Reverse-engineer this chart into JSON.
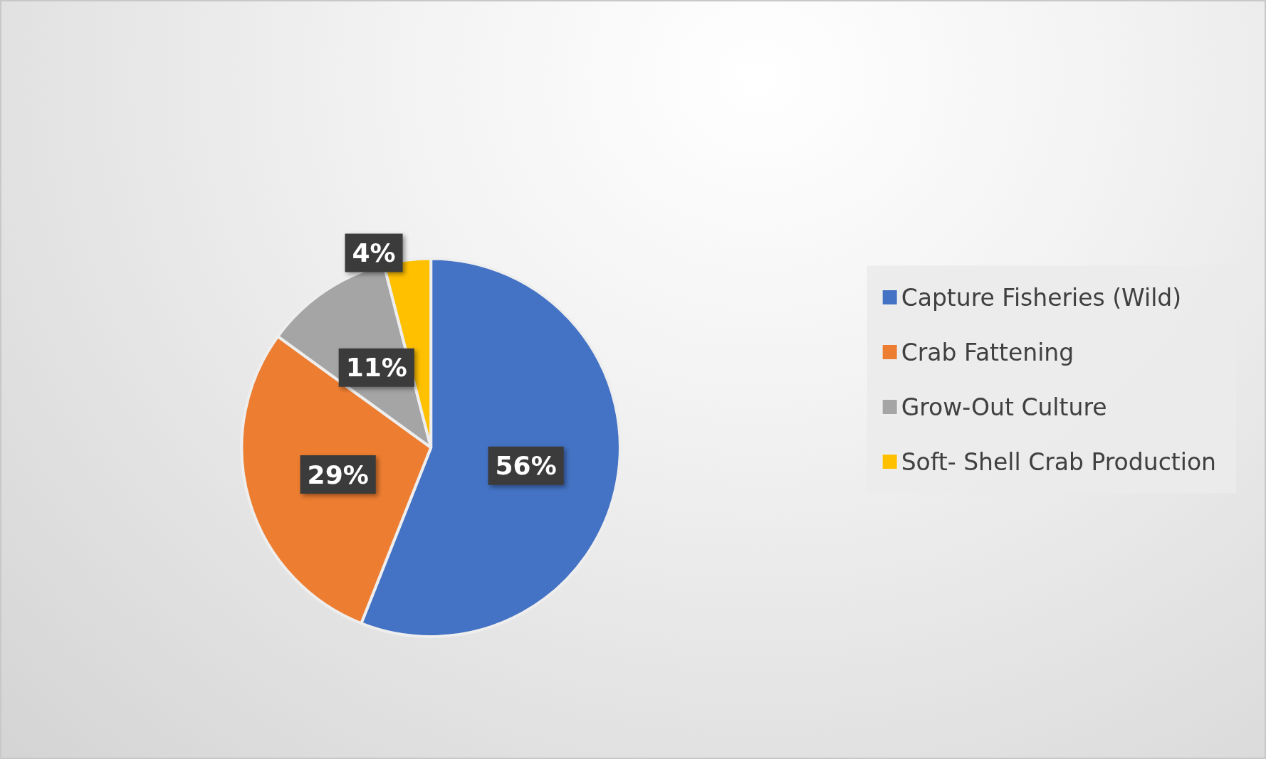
{
  "chart_data": {
    "type": "pie",
    "categories": [
      "Capture Fisheries (Wild)",
      "Crab Fattening",
      "Grow-Out Culture",
      "Soft- Shell Crab Production"
    ],
    "values": [
      56,
      29,
      11,
      4
    ],
    "colors": [
      "#4472c4",
      "#ed7d31",
      "#a5a5a5",
      "#ffc000"
    ],
    "value_labels": [
      "56%",
      "29%",
      "11%",
      "4%"
    ],
    "legend": "right"
  }
}
